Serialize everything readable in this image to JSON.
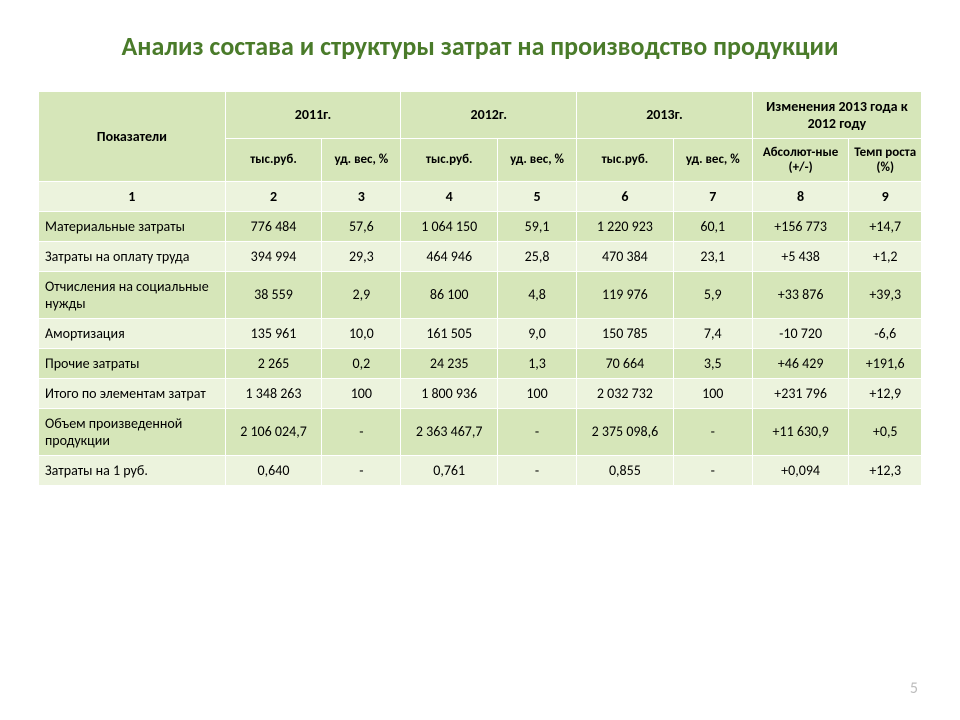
{
  "title": "Анализ состава и структуры затрат на производство продукции",
  "page_number": "5",
  "colors": {
    "title_color": "#4a7b2a",
    "header_bg": "#d6e6b9",
    "row_odd_bg": "#ecf3dd",
    "row_even_bg": "#d6e6b9",
    "border": "#ffffff",
    "page_num_color": "#bdbdbd"
  },
  "header": {
    "indicators": "Показатели",
    "y2011": "2011г.",
    "y2012": "2012г.",
    "y2013": "2013г.",
    "changes": "Изменения 2013 года к 2012 году",
    "thous_rub": "тыс.руб.",
    "weight_pct": "уд. вес, %",
    "absolute": "Абсолют-ные (+/-)",
    "growth_rate": "Темп роста (%)"
  },
  "numrow": [
    "1",
    "2",
    "3",
    "4",
    "5",
    "6",
    "7",
    "8",
    "9"
  ],
  "rows": [
    {
      "label": "Материальные затраты",
      "v2011": "776 484",
      "p2011": "57,6",
      "v2012": "1 064 150",
      "p2012": "59,1",
      "v2013": "1 220 923",
      "p2013": "60,1",
      "abs": "+156 773",
      "tempo": "+14,7"
    },
    {
      "label": "Затраты на оплату труда",
      "v2011": "394 994",
      "p2011": "29,3",
      "v2012": "464 946",
      "p2012": "25,8",
      "v2013": "470 384",
      "p2013": "23,1",
      "abs": "+5 438",
      "tempo": "+1,2"
    },
    {
      "label": "Отчисления на социальные нужды",
      "v2011": "38 559",
      "p2011": "2,9",
      "v2012": "86 100",
      "p2012": "4,8",
      "v2013": "119 976",
      "p2013": "5,9",
      "abs": "+33 876",
      "tempo": "+39,3"
    },
    {
      "label": "Амортизация",
      "v2011": "135 961",
      "p2011": "10,0",
      "v2012": "161 505",
      "p2012": "9,0",
      "v2013": "150 785",
      "p2013": "7,4",
      "abs": "-10 720",
      "tempo": "-6,6"
    },
    {
      "label": "Прочие затраты",
      "v2011": "2 265",
      "p2011": "0,2",
      "v2012": "24 235",
      "p2012": "1,3",
      "v2013": "70 664",
      "p2013": "3,5",
      "abs": "+46 429",
      "tempo": "+191,6"
    },
    {
      "label": "Итого по элементам затрат",
      "v2011": "1 348 263",
      "p2011": "100",
      "v2012": "1 800 936",
      "p2012": "100",
      "v2013": "2 032 732",
      "p2013": "100",
      "abs": "+231 796",
      "tempo": "+12,9"
    },
    {
      "label": "Объем произведенной продукции",
      "v2011": "2 106 024,7",
      "p2011": "-",
      "v2012": "2 363 467,7",
      "p2012": "-",
      "v2013": "2 375 098,6",
      "p2013": "-",
      "abs": "+11 630,9",
      "tempo": "+0,5"
    },
    {
      "label": "Затраты на 1 руб.",
      "v2011": "0,640",
      "p2011": "-",
      "v2012": "0,761",
      "p2012": "-",
      "v2013": "0,855",
      "p2013": "-",
      "abs": "+0,094",
      "tempo": "+12,3"
    }
  ]
}
